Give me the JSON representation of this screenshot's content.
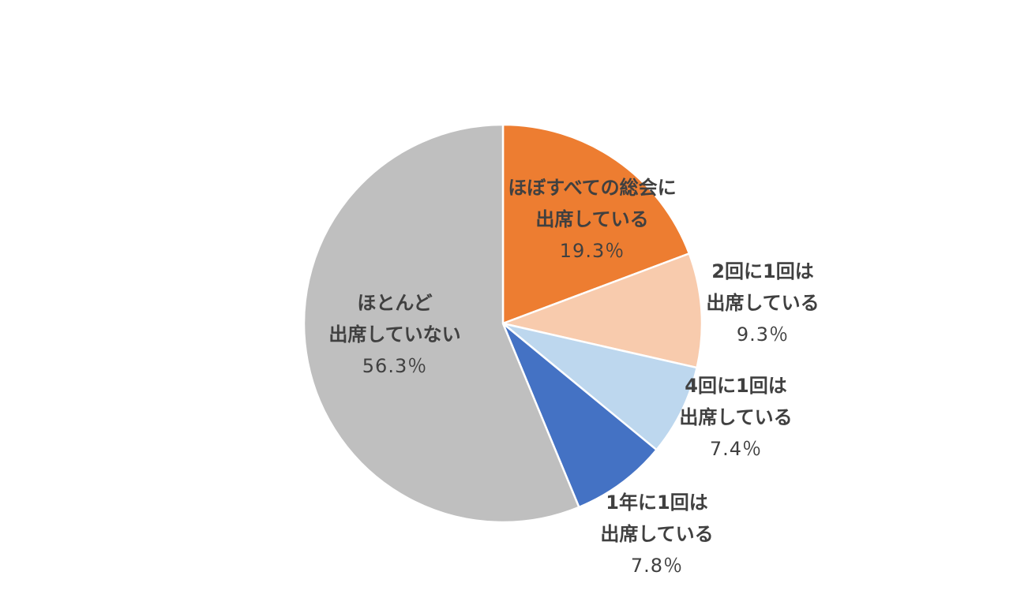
{
  "chart_data": {
    "type": "pie",
    "title": "",
    "start_angle_deg": 0,
    "direction": "clockwise",
    "slices": [
      {
        "label_lines": [
          "ほぼすべての総会に",
          "出席している"
        ],
        "value": 19.3,
        "value_text": "19.3％",
        "color": "#ED7D31"
      },
      {
        "label_lines": [
          "2回に1回は",
          "出席している"
        ],
        "value": 9.3,
        "value_text": "9.3％",
        "color": "#F8CBAD"
      },
      {
        "label_lines": [
          "4回に1回は",
          "出席している"
        ],
        "value": 7.4,
        "value_text": "7.4％",
        "color": "#BDD7EE"
      },
      {
        "label_lines": [
          "1年に1回は",
          "出席している"
        ],
        "value": 7.8,
        "value_text": "7.8％",
        "color": "#4472C4"
      },
      {
        "label_lines": [
          "ほとんど",
          "出席していない"
        ],
        "value": 56.3,
        "value_text": "56.3％",
        "color": "#BFBFBF"
      }
    ]
  }
}
